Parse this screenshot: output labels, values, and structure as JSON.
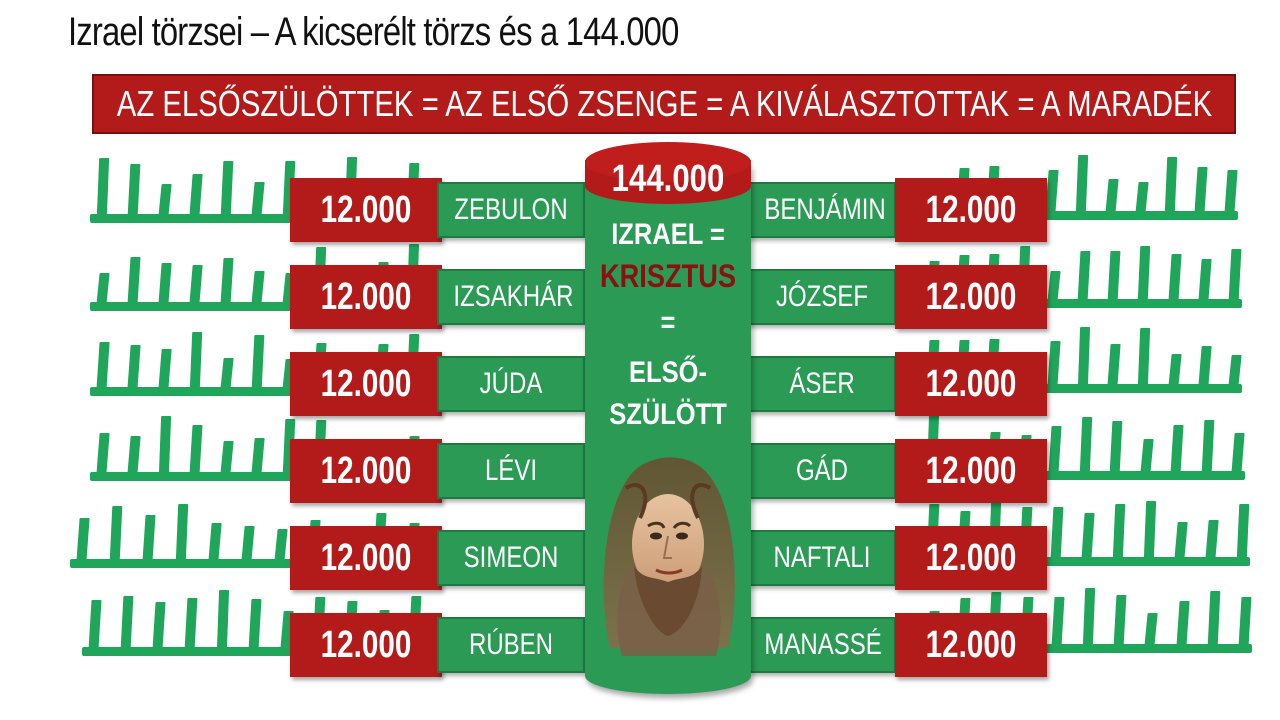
{
  "title": "Izrael törzsei – A kicserélt törzs és a 144.000",
  "banner": "AZ ELSŐSZÜLÖTTEK = AZ ELSŐ ZSENGE = A KIVÁLASZTOTTAK = A MARADÉK",
  "left_tribes": [
    {
      "count": "12.000",
      "name": "ZEBULON"
    },
    {
      "count": "12.000",
      "name": "IZSAKHÁR"
    },
    {
      "count": "12.000",
      "name": "JÚDA"
    },
    {
      "count": "12.000",
      "name": "LÉVI"
    },
    {
      "count": "12.000",
      "name": "SIMEON"
    },
    {
      "count": "12.000",
      "name": "RÚBEN"
    }
  ],
  "right_tribes": [
    {
      "count": "12.000",
      "name": "BENJÁMIN"
    },
    {
      "count": "12.000",
      "name": "JÓZSEF"
    },
    {
      "count": "12.000",
      "name": "ÁSER"
    },
    {
      "count": "12.000",
      "name": "GÁD"
    },
    {
      "count": "12.000",
      "name": "NAFTALI"
    },
    {
      "count": "12.000",
      "name": "MANASSÉ"
    }
  ],
  "pillar": {
    "total": "144.000",
    "line1": "IZRAEL =",
    "line2": "KRISZTUS",
    "line3": "=",
    "line4": "ELSŐ-",
    "line5": "SZÜLÖTT"
  },
  "colors": {
    "red": "#b31b1b",
    "green": "#2a9a55",
    "comb_green": "#20a65a"
  }
}
